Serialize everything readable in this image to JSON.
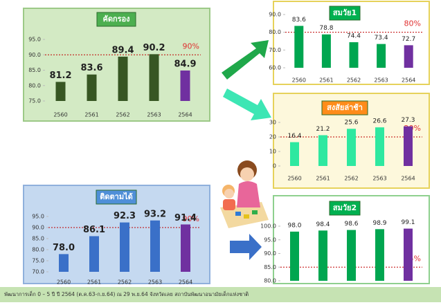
{
  "chart_data": [
    {
      "type": "bar",
      "title": "คัดกรอง",
      "categories": [
        "2560",
        "2561",
        "2562",
        "2563",
        "2564"
      ],
      "values": [
        81.2,
        83.6,
        89.4,
        90.2,
        84.9
      ],
      "colors": [
        "#375623",
        "#375623",
        "#375623",
        "#375623",
        "#7030a0"
      ],
      "ylim": [
        75,
        95
      ],
      "yticks": [
        {
          "value": 75,
          "label": "75.0"
        },
        {
          "value": 80,
          "label": "80.0"
        },
        {
          "value": 85,
          "label": "85.0"
        },
        {
          "value": 90,
          "label": "90.0"
        },
        {
          "value": 95,
          "label": "95.0"
        }
      ],
      "target": {
        "value": 90,
        "label": "90%"
      }
    },
    {
      "type": "bar",
      "title": "สมวัย1",
      "categories": [
        "2560",
        "2561",
        "2562",
        "2563",
        "2564"
      ],
      "values": [
        83.6,
        78.8,
        74.4,
        73.4,
        72.7
      ],
      "colors": [
        "#00a650",
        "#00a650",
        "#00a650",
        "#00a650",
        "#7030a0"
      ],
      "ylim": [
        60,
        90
      ],
      "yticks": [
        {
          "value": 60,
          "label": "60.0"
        },
        {
          "value": 70,
          "label": "70.0"
        },
        {
          "value": 80,
          "label": "80.0"
        },
        {
          "value": 90,
          "label": "90.0"
        }
      ],
      "target": {
        "value": 80,
        "label": "80%"
      }
    },
    {
      "type": "bar",
      "title": "สงสัยล่าช้า",
      "categories": [
        "2560",
        "2561",
        "2562",
        "2563",
        "2564"
      ],
      "values": [
        16.4,
        21.2,
        25.6,
        26.6,
        27.3
      ],
      "colors": [
        "#2ee8a0",
        "#2ee8a0",
        "#2ee8a0",
        "#2ee8a0",
        "#7030a0"
      ],
      "ylim": [
        0,
        30
      ],
      "yticks": [
        0,
        10,
        20,
        30
      ],
      "target": {
        "value": 20,
        "label": "20%"
      }
    },
    {
      "type": "bar",
      "title": "ติดตามได้",
      "categories": [
        "2560",
        "2561",
        "2562",
        "2563",
        "2564"
      ],
      "values": [
        78,
        86.1,
        92.3,
        93.2,
        91.4
      ],
      "value_labels": [
        "78.0",
        "86.1",
        "92.3",
        "93.2",
        "91.4"
      ],
      "colors": [
        "#3a70c8",
        "#3a70c8",
        "#3a70c8",
        "#3a70c8",
        "#7030a0"
      ],
      "ylim": [
        70,
        95
      ],
      "yticks": [
        {
          "value": 70,
          "label": "70.0"
        },
        {
          "value": 75,
          "label": "75.0"
        },
        {
          "value": 80,
          "label": "80.0"
        },
        {
          "value": 85,
          "label": "85.0"
        },
        {
          "value": 90,
          "label": "90.0"
        },
        {
          "value": 95,
          "label": "95.0"
        }
      ],
      "target": {
        "value": 90,
        "label": "90%"
      }
    },
    {
      "type": "bar",
      "title": "สมวัย2",
      "values": [
        98,
        98.4,
        98.6,
        98.9,
        99.1
      ],
      "value_labels": [
        "98.0",
        "98.4",
        "98.6",
        "98.9",
        "99.1"
      ],
      "colors": [
        "#00a650",
        "#00a650",
        "#00a650",
        "#00a650",
        "#7030a0"
      ],
      "ylim": [
        80,
        100
      ],
      "yticks": [
        {
          "value": 80,
          "label": "80.0"
        },
        {
          "value": 85,
          "label": "85.0"
        },
        {
          "value": 90,
          "label": "90.0"
        },
        {
          "value": 95,
          "label": "95.0"
        },
        {
          "value": 100,
          "label": "100.0"
        }
      ],
      "target": {
        "value": 85,
        "label": "85%"
      }
    }
  ],
  "footer": "พัฒนาการเด็ก 0 – 5 ปี ปี 2564 (ต.ค.63-ก.ย.64) ณ 29 พ.ย.64 จังหวัดเลย สถาบันพัฒนาอนามัยเด็กแห่งชาติ"
}
